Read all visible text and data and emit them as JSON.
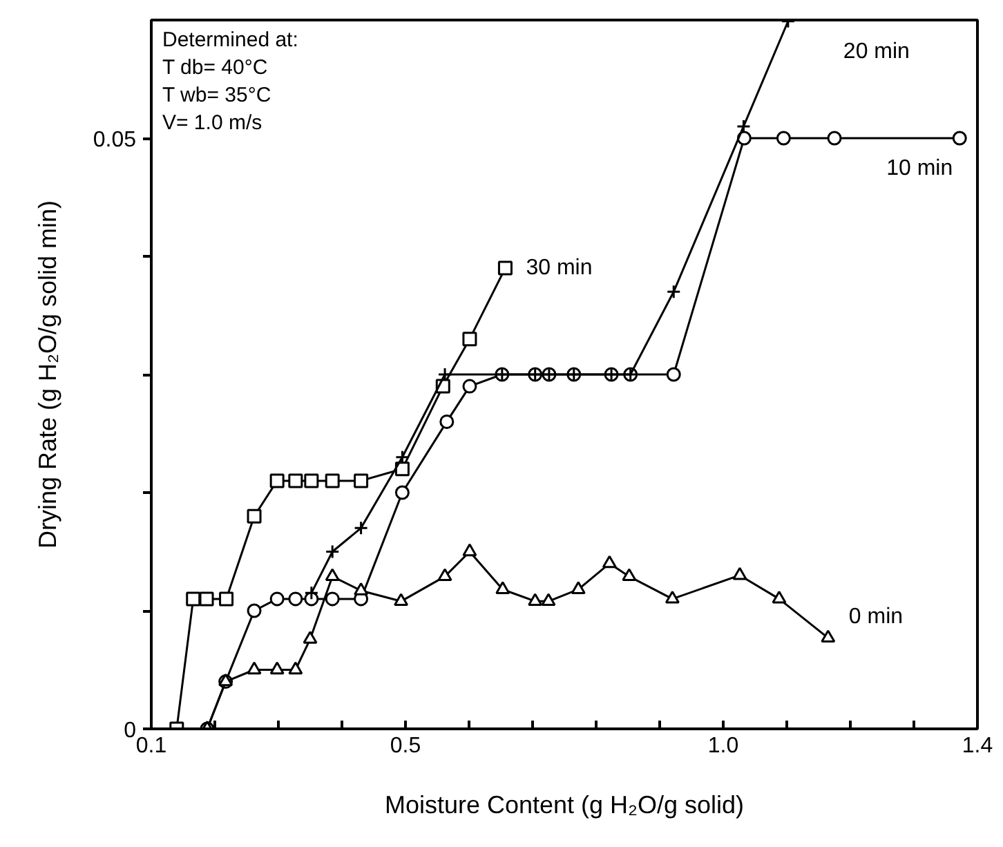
{
  "chart_data": {
    "type": "line",
    "xlabel": "Moisture Content (g H₂O/g solid)",
    "ylabel": "Drying Rate (g H₂O/g solid min)",
    "xlim": [
      0.1,
      1.4
    ],
    "ylim": [
      0,
      0.06
    ],
    "xticks": [
      0.1,
      {
        "value": 0.2,
        "label": null
      },
      {
        "value": 0.3,
        "label": null
      },
      {
        "value": 0.4,
        "label": null
      },
      0.5,
      {
        "value": 0.6,
        "label": null
      },
      {
        "value": 0.7,
        "label": null
      },
      {
        "value": 0.8,
        "label": null
      },
      {
        "value": 0.9,
        "label": null
      },
      {
        "value": 1.0,
        "label": "1.0"
      },
      {
        "value": 1.1,
        "label": null
      },
      {
        "value": 1.2,
        "label": null
      },
      {
        "value": 1.3,
        "label": null
      },
      1.4
    ],
    "yticks": [
      0,
      {
        "value": 0.01,
        "label": null
      },
      {
        "value": 0.02,
        "label": null
      },
      {
        "value": 0.03,
        "label": null
      },
      {
        "value": 0.04,
        "label": null
      },
      0.05
    ],
    "grid": false,
    "series": [
      {
        "name": "30 min",
        "color": "#000000",
        "marker": "square",
        "x": [
          0.14,
          0.166,
          0.187,
          0.218,
          0.262,
          0.298,
          0.327,
          0.352,
          0.385,
          0.43,
          0.495,
          0.559,
          0.601,
          0.657
        ],
        "values": [
          0,
          0.011,
          0.011,
          0.011,
          0.018,
          0.021,
          0.021,
          0.021,
          0.021,
          0.021,
          0.022,
          0.029,
          0.033,
          0.039
        ]
      },
      {
        "name": "10 min",
        "color": "#000000",
        "marker": "circle",
        "x": [
          0.188,
          0.217,
          0.262,
          0.298,
          0.327,
          0.352,
          0.385,
          0.43,
          0.495,
          0.565,
          0.601,
          0.652,
          0.704,
          0.726,
          0.765,
          0.824,
          0.854,
          0.922,
          1.033,
          1.095,
          1.175,
          1.372
        ],
        "values": [
          0,
          0.004,
          0.01,
          0.011,
          0.011,
          0.011,
          0.011,
          0.011,
          0.02,
          0.026,
          0.029,
          0.03,
          0.03,
          0.03,
          0.03,
          0.03,
          0.03,
          0.03,
          0.05,
          0.05,
          0.05,
          0.05
        ]
      },
      {
        "name": "20 min",
        "color": "#000000",
        "marker": "cross",
        "x": [
          0.352,
          0.385,
          0.43,
          0.495,
          0.562,
          0.652,
          0.704,
          0.726,
          0.765,
          0.824,
          0.854,
          0.922,
          1.032,
          1.102
        ],
        "values": [
          0.0115,
          0.015,
          0.017,
          0.023,
          0.03,
          0.03,
          0.03,
          0.03,
          0.03,
          0.03,
          0.03,
          0.037,
          0.051,
          0.0599
        ]
      },
      {
        "name": "0 min",
        "color": "#000000",
        "marker": "triangle",
        "x": [
          0.188,
          0.217,
          0.262,
          0.298,
          0.327,
          0.35,
          0.385,
          0.43,
          0.493,
          0.562,
          0.601,
          0.653,
          0.704,
          0.725,
          0.772,
          0.821,
          0.852,
          0.92,
          1.026,
          1.088,
          1.165
        ],
        "values": [
          0,
          0.004,
          0.005,
          0.005,
          0.005,
          0.0076,
          0.0129,
          0.0117,
          0.0108,
          0.0129,
          0.015,
          0.0118,
          0.0108,
          0.0108,
          0.0118,
          0.014,
          0.0129,
          0.011,
          0.013,
          0.011,
          0.0077
        ]
      }
    ],
    "annotations": [
      "Determined at:",
      "T db= 40°C",
      "T wb= 35°C",
      "V= 1.0 m/s"
    ]
  }
}
